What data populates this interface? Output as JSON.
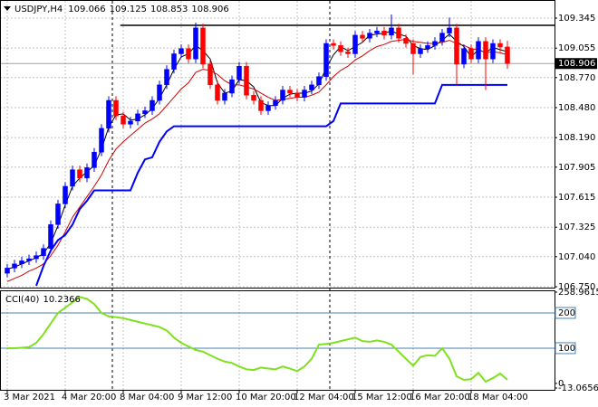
{
  "chart_data": {
    "type": "candlestick",
    "title": "USDJPY,H4",
    "categories": [
      "3 Mar 2021",
      null,
      null,
      null,
      null,
      null,
      null,
      null,
      "4 Mar 20:00",
      null,
      null,
      null,
      null,
      null,
      null,
      null,
      "8 Mar 04:00",
      null,
      null,
      null,
      null,
      null,
      null,
      null,
      "9 Mar 12:00",
      null,
      null,
      null,
      null,
      null,
      null,
      null,
      "10 Mar 20:00",
      null,
      null,
      null,
      null,
      null,
      null,
      null,
      "12 Mar 04:00",
      null,
      null,
      null,
      null,
      null,
      null,
      null,
      "15 Mar 12:00",
      null,
      null,
      null,
      null,
      null,
      null,
      null,
      "16 Mar 20:00",
      null,
      null,
      null,
      null,
      null,
      null,
      null,
      "18 Mar 04:00",
      null,
      null,
      null,
      null,
      null
    ],
    "open": [
      106.88,
      106.93,
      106.97,
      107.0,
      107.02,
      107.05,
      107.12,
      107.35,
      107.55,
      107.72,
      107.88,
      107.8,
      107.9,
      108.05,
      108.28,
      108.55,
      108.4,
      108.32,
      108.35,
      108.42,
      108.45,
      108.55,
      108.7,
      108.85,
      109.0,
      109.05,
      108.95,
      109.25,
      108.9,
      108.7,
      108.55,
      108.62,
      108.75,
      108.88,
      108.6,
      108.55,
      108.45,
      108.5,
      108.55,
      108.65,
      108.62,
      108.58,
      108.65,
      108.7,
      108.78,
      109.1,
      109.08,
      109.02,
      109.0,
      109.18,
      109.15,
      109.2,
      109.22,
      109.18,
      109.25,
      109.15,
      109.1,
      109.0,
      109.05,
      109.08,
      109.12,
      109.2,
      109.25,
      108.9,
      109.05,
      108.95,
      109.12,
      108.95,
      109.1,
      109.066
    ],
    "high": [
      106.97,
      107.01,
      107.04,
      107.06,
      107.09,
      107.16,
      107.39,
      107.59,
      107.76,
      107.92,
      107.92,
      107.94,
      108.09,
      108.32,
      108.59,
      108.59,
      108.44,
      108.39,
      108.46,
      108.49,
      108.59,
      108.74,
      108.89,
      109.04,
      109.09,
      109.09,
      109.3,
      109.29,
      108.94,
      108.74,
      108.66,
      108.79,
      108.92,
      108.92,
      108.64,
      108.59,
      108.54,
      108.59,
      108.69,
      108.69,
      108.66,
      108.69,
      108.74,
      108.82,
      109.14,
      109.14,
      109.12,
      109.06,
      109.22,
      109.22,
      109.24,
      109.26,
      109.26,
      109.38,
      109.29,
      109.19,
      109.14,
      109.09,
      109.12,
      109.16,
      109.24,
      109.35,
      109.29,
      109.09,
      109.09,
      109.16,
      109.16,
      109.14,
      109.14,
      109.125
    ],
    "low": [
      106.84,
      106.89,
      106.93,
      106.96,
      106.98,
      107.01,
      107.08,
      107.31,
      107.51,
      107.68,
      107.76,
      107.76,
      107.86,
      108.01,
      108.24,
      108.36,
      108.28,
      108.28,
      108.31,
      108.38,
      108.41,
      108.51,
      108.66,
      108.81,
      108.96,
      108.91,
      108.91,
      108.86,
      108.66,
      108.51,
      108.51,
      108.58,
      108.71,
      108.56,
      108.51,
      108.41,
      108.41,
      108.46,
      108.51,
      108.58,
      108.54,
      108.54,
      108.61,
      108.66,
      108.74,
      109.04,
      108.98,
      108.96,
      108.96,
      109.11,
      109.11,
      109.16,
      109.14,
      109.14,
      109.11,
      109.06,
      108.8,
      108.96,
      109.01,
      109.04,
      109.08,
      109.16,
      108.7,
      108.86,
      108.91,
      108.91,
      108.65,
      108.91,
      109.02,
      108.853
    ],
    "close": [
      106.93,
      106.97,
      107.0,
      107.02,
      107.05,
      107.12,
      107.35,
      107.55,
      107.72,
      107.88,
      107.8,
      107.9,
      108.05,
      108.28,
      108.55,
      108.4,
      108.32,
      108.35,
      108.42,
      108.45,
      108.55,
      108.7,
      108.85,
      109.0,
      109.05,
      108.95,
      109.25,
      108.9,
      108.7,
      108.55,
      108.62,
      108.75,
      108.88,
      108.6,
      108.55,
      108.45,
      108.5,
      108.55,
      108.65,
      108.62,
      108.58,
      108.65,
      108.7,
      108.78,
      109.1,
      109.08,
      109.02,
      109.0,
      109.18,
      109.15,
      109.2,
      109.22,
      109.18,
      109.25,
      109.15,
      109.1,
      109.0,
      109.05,
      109.08,
      109.12,
      109.2,
      109.25,
      108.9,
      109.05,
      108.95,
      109.12,
      108.95,
      109.1,
      109.066,
      108.906
    ],
    "up_color": "#0000ff",
    "down_color": "#ff0000",
    "ylim": [
      106.75,
      109.476
    ],
    "yticks": [
      109.345,
      109.055,
      {
        "value": 108.77,
        "label": "108.770"
      },
      {
        "value": 108.48,
        "label": "108.480"
      },
      {
        "value": 108.19,
        "label": "108.190"
      },
      107.905,
      107.615,
      107.325,
      {
        "value": 107.04,
        "label": "107.040"
      },
      {
        "value": 106.75,
        "label": "106.750"
      }
    ],
    "grid": true,
    "hline": 109.275,
    "series": [
      {
        "color": "#000000",
        "width": 1,
        "values": [
          106.92,
          106.94,
          106.97,
          107.0,
          107.03,
          107.07,
          107.17,
          107.34,
          107.54,
          107.72,
          107.8,
          107.86,
          107.92,
          108.08,
          108.29,
          108.41,
          108.42,
          108.36,
          108.37,
          108.41,
          108.47,
          108.57,
          108.7,
          108.85,
          108.97,
          109.0,
          109.08,
          109.03,
          108.95,
          108.72,
          108.62,
          108.64,
          108.75,
          108.74,
          108.68,
          108.53,
          108.5,
          108.5,
          108.57,
          108.61,
          108.62,
          108.62,
          108.64,
          108.71,
          108.86,
          108.99,
          109.07,
          109.03,
          109.07,
          109.11,
          109.18,
          109.19,
          109.2,
          109.22,
          109.19,
          109.17,
          109.08,
          109.05,
          109.04,
          109.08,
          109.13,
          109.19,
          109.12,
          109.07,
          108.97,
          109.04,
          109.01,
          109.06,
          109.04,
          109.02
        ]
      },
      {
        "color": "#d00000",
        "width": 1,
        "values": [
          106.8,
          106.83,
          106.86,
          106.9,
          106.93,
          106.97,
          107.05,
          107.15,
          107.28,
          107.42,
          107.52,
          107.62,
          107.72,
          107.83,
          107.97,
          108.08,
          108.15,
          108.21,
          108.27,
          108.33,
          108.37,
          108.42,
          108.5,
          108.58,
          108.66,
          108.72,
          108.82,
          108.85,
          108.84,
          108.8,
          108.74,
          108.7,
          108.7,
          108.68,
          108.66,
          108.62,
          108.58,
          108.55,
          108.56,
          108.57,
          108.58,
          108.58,
          108.6,
          108.63,
          108.7,
          108.78,
          108.84,
          108.88,
          108.94,
          108.98,
          109.03,
          109.07,
          109.09,
          109.12,
          109.13,
          109.14,
          109.12,
          109.11,
          109.1,
          109.1,
          109.11,
          109.13,
          109.1,
          109.08,
          109.05,
          109.04,
          109.01,
          109.02,
          109.01,
          108.99
        ]
      },
      {
        "color": "#0000ff",
        "width": 2,
        "values": [
          null,
          null,
          null,
          null,
          106.76,
          106.95,
          107.1,
          107.2,
          107.25,
          107.35,
          107.5,
          107.58,
          107.68,
          107.68,
          107.68,
          107.68,
          107.68,
          107.68,
          107.85,
          107.98,
          108.0,
          108.15,
          108.25,
          108.3,
          108.3,
          108.3,
          108.3,
          108.3,
          108.3,
          108.3,
          108.3,
          108.3,
          108.3,
          108.3,
          108.3,
          108.3,
          108.3,
          108.3,
          108.3,
          108.3,
          108.3,
          108.3,
          108.3,
          108.3,
          108.3,
          108.35,
          108.52,
          108.52,
          108.52,
          108.52,
          108.52,
          108.52,
          108.52,
          108.52,
          108.52,
          108.52,
          108.52,
          108.52,
          108.52,
          108.52,
          108.7,
          108.7,
          108.7,
          108.7,
          108.7,
          108.7,
          108.7,
          108.7,
          108.7,
          108.7
        ]
      }
    ],
    "indicator": {
      "type": "line",
      "name": "CCI(40)",
      "color": "#7fe01f",
      "values": [
        100,
        100,
        101,
        103,
        115,
        140,
        170,
        200,
        215,
        230,
        245,
        240,
        225,
        200,
        190,
        188,
        185,
        180,
        175,
        170,
        165,
        160,
        150,
        130,
        115,
        105,
        95,
        90,
        80,
        70,
        62,
        58,
        48,
        40,
        38,
        45,
        42,
        40,
        48,
        42,
        35,
        48,
        70,
        110,
        112,
        115,
        120,
        125,
        130,
        120,
        118,
        122,
        118,
        110,
        90,
        70,
        50,
        75,
        80,
        78,
        100,
        70,
        20,
        10,
        12,
        30,
        5,
        15,
        28,
        10.2366
      ],
      "ylim": [
        -13.0656,
        258.9615
      ],
      "yticks": [
        258.9615,
        0,
        -13.0656
      ],
      "levels": [
        200,
        100
      ],
      "level_color": "#4682b4"
    }
  }
}
